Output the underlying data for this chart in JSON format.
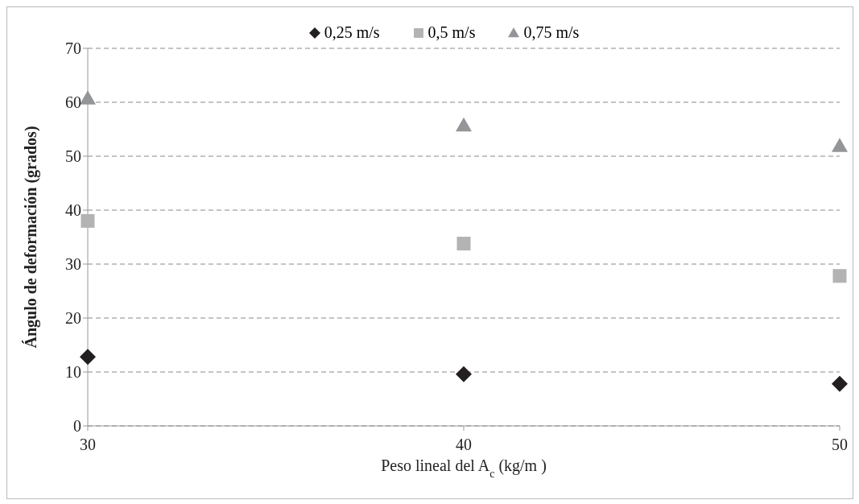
{
  "chart_data": {
    "type": "scatter",
    "xlabel": "Peso lineal del A$_{c}$ (kg/m )",
    "ylabel": "Ángulo de deformación (grados)",
    "categories": [
      "30",
      "40",
      "50"
    ],
    "ylim": [
      0,
      70
    ],
    "yticks": [
      0,
      10,
      20,
      30,
      40,
      50,
      60,
      70
    ],
    "grid": "y",
    "legend": "top",
    "series": [
      {
        "name": "0,25 m/s",
        "color": "#231f20",
        "marker": "diamond",
        "values": [
          12.8,
          9.6,
          7.8
        ]
      },
      {
        "name": "0,5 m/s",
        "color": "#b3b3b3",
        "marker": "square",
        "values": [
          38.0,
          33.8,
          27.8
        ]
      },
      {
        "name": "0,75 m/s",
        "color": "#939598",
        "marker": "triangle",
        "values": [
          60.7,
          55.7,
          51.9
        ]
      }
    ]
  }
}
